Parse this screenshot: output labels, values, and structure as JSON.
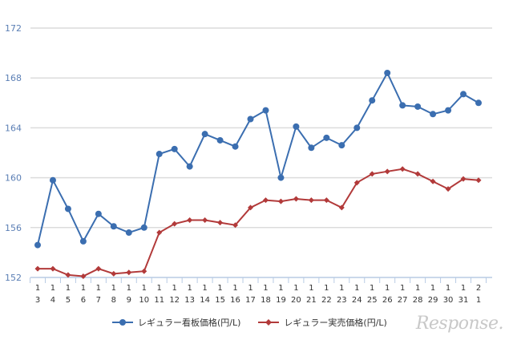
{
  "chart_data": {
    "type": "line",
    "title": "",
    "xlabel": "",
    "ylabel": "",
    "ylim": [
      152,
      172
    ],
    "yticks": [
      152,
      156,
      160,
      164,
      168,
      172
    ],
    "grid": true,
    "legend_position": "bottom",
    "categories": [
      [
        "1",
        "3"
      ],
      [
        "1",
        "4"
      ],
      [
        "1",
        "5"
      ],
      [
        "1",
        "6"
      ],
      [
        "1",
        "7"
      ],
      [
        "1",
        "8"
      ],
      [
        "1",
        "9"
      ],
      [
        "1",
        "10"
      ],
      [
        "1",
        "11"
      ],
      [
        "1",
        "12"
      ],
      [
        "1",
        "13"
      ],
      [
        "1",
        "14"
      ],
      [
        "1",
        "15"
      ],
      [
        "1",
        "16"
      ],
      [
        "1",
        "17"
      ],
      [
        "1",
        "18"
      ],
      [
        "1",
        "19"
      ],
      [
        "1",
        "20"
      ],
      [
        "1",
        "21"
      ],
      [
        "1",
        "22"
      ],
      [
        "1",
        "23"
      ],
      [
        "1",
        "24"
      ],
      [
        "1",
        "25"
      ],
      [
        "1",
        "26"
      ],
      [
        "1",
        "27"
      ],
      [
        "1",
        "28"
      ],
      [
        "1",
        "29"
      ],
      [
        "1",
        "30"
      ],
      [
        "1",
        "31"
      ],
      [
        "2",
        "1"
      ]
    ],
    "series": [
      {
        "name": "レギュラー看板価格(円/L)",
        "color": "#3b6eb0",
        "marker": "circle",
        "values": [
          154.6,
          159.8,
          157.5,
          154.9,
          157.1,
          156.1,
          155.6,
          156.0,
          161.9,
          162.3,
          160.9,
          163.5,
          163.0,
          162.5,
          164.7,
          165.4,
          160.0,
          164.1,
          162.4,
          163.2,
          162.6,
          164.0,
          166.2,
          168.4,
          165.8,
          165.7,
          165.1,
          165.4,
          166.7,
          166.0
        ]
      },
      {
        "name": "レギュラー実売価格(円/L)",
        "color": "#b23a3a",
        "marker": "diamond",
        "values": [
          152.7,
          152.7,
          152.2,
          152.1,
          152.7,
          152.3,
          152.4,
          152.5,
          155.6,
          156.3,
          156.6,
          156.6,
          156.4,
          156.2,
          157.6,
          158.2,
          158.1,
          158.3,
          158.2,
          158.2,
          157.6,
          159.6,
          160.3,
          160.5,
          160.7,
          160.3,
          159.7,
          159.1,
          159.9,
          159.8
        ]
      }
    ]
  },
  "logo": "Response."
}
